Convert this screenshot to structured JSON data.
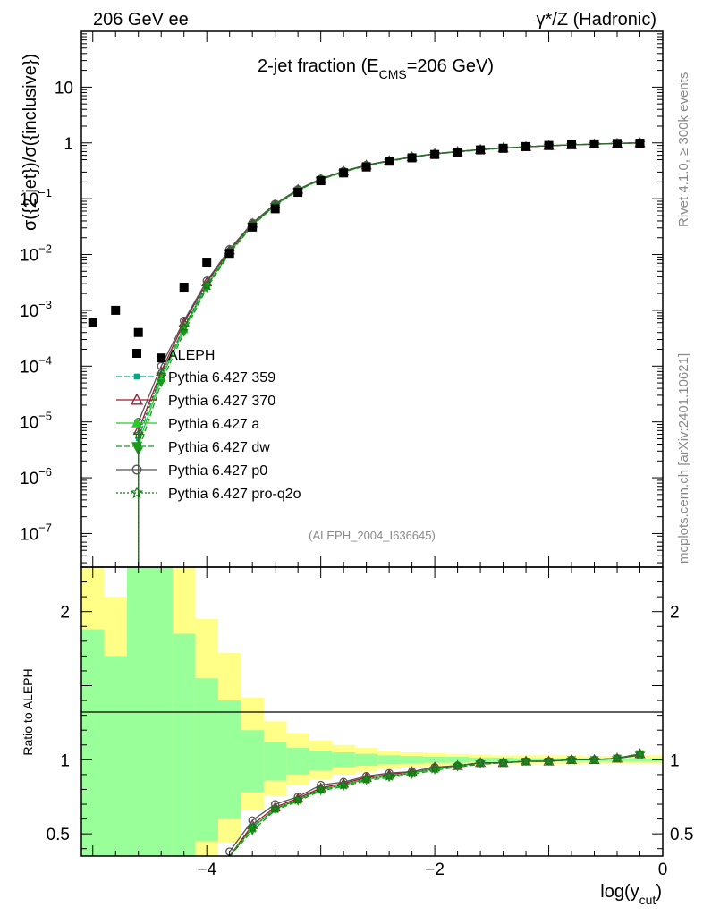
{
  "header": {
    "left": "206 GeV ee",
    "right": "γ*/Z (Hadronic)",
    "side_right_top": "Rivet 4.1.0, ≥ 300k events",
    "side_right_bottom": "mcplots.cern.ch [arXiv:2401.10621]",
    "analysis_id": "(ALEPH_2004_I636645)"
  },
  "chart_data": [
    {
      "type": "scatter",
      "title": "2-jet fraction (E_CMS=206 GeV)",
      "title_main": "2-jet fraction (E",
      "title_sub": "CMS",
      "title_end": "=206 GeV)",
      "xlabel": "log(y_cut)",
      "xlabel_main": "log(y",
      "xlabel_sub": "cut",
      "xlabel_end": ")",
      "ylabel": "σ({2 jet})/σ({inclusive})",
      "yscale": "log",
      "xlim": [
        -5.1,
        0.0
      ],
      "ylim": [
        2.5e-08,
        100
      ],
      "y_ticks": [
        {
          "value": 10,
          "label": "10"
        },
        {
          "value": 1,
          "label": "1"
        },
        {
          "value": 0.1,
          "label": "10",
          "exp": "−1"
        },
        {
          "value": 0.01,
          "label": "10",
          "exp": "−2"
        },
        {
          "value": 0.001,
          "label": "10",
          "exp": "−3"
        },
        {
          "value": 0.0001,
          "label": "10",
          "exp": "−4"
        },
        {
          "value": 1e-05,
          "label": "10",
          "exp": "−5"
        },
        {
          "value": 1e-06,
          "label": "10",
          "exp": "−6"
        },
        {
          "value": 1e-07,
          "label": "10",
          "exp": "−7"
        }
      ],
      "data": {
        "name": "ALEPH",
        "color": "#000000",
        "x": [
          -5.0,
          -4.8,
          -4.6,
          -4.4,
          -4.2,
          -4.0,
          -3.8,
          -3.6,
          -3.4,
          -3.2,
          -3.0,
          -2.8,
          -2.6,
          -2.4,
          -2.2,
          -2.0,
          -1.8,
          -1.6,
          -1.4,
          -1.2,
          -1.0,
          -0.8,
          -0.6,
          -0.4,
          -0.2
        ],
        "y": [
          0.0006,
          0.001,
          0.0004,
          0.00014,
          0.0026,
          0.0073,
          0.0105,
          0.031,
          0.066,
          0.13,
          0.21,
          0.29,
          0.37,
          0.47,
          0.54,
          0.62,
          0.68,
          0.75,
          0.8,
          0.86,
          0.9,
          0.93,
          0.96,
          0.98,
          0.99
        ]
      },
      "series": [
        {
          "name": "Pythia 6.427 359",
          "color": "#00aa88",
          "dash": "6,3",
          "marker": "square",
          "x": [
            -4.6,
            -4.4,
            -4.2,
            -4.0,
            -3.8,
            -3.6,
            -3.4,
            -3.2,
            -3.0,
            -2.8,
            -2.6,
            -2.4,
            -2.2,
            -2.0,
            -1.8,
            -1.6,
            -1.4,
            -1.2,
            -1.0,
            -0.8,
            -0.6,
            -0.4,
            -0.2
          ],
          "y": [
            5e-06,
            7e-05,
            0.0005,
            0.003,
            0.012,
            0.036,
            0.079,
            0.145,
            0.225,
            0.31,
            0.4,
            0.48,
            0.56,
            0.64,
            0.7,
            0.76,
            0.81,
            0.85,
            0.89,
            0.92,
            0.95,
            0.98,
            1.0
          ]
        },
        {
          "name": "Pythia 6.427 370",
          "color": "#a01830",
          "dash": "",
          "marker": "triangle-open",
          "x": [
            -4.6,
            -4.4,
            -4.2,
            -4.0,
            -3.8,
            -3.6,
            -3.4,
            -3.2,
            -3.0,
            -2.8,
            -2.6,
            -2.4,
            -2.2,
            -2.0,
            -1.8,
            -1.6,
            -1.4,
            -1.2,
            -1.0,
            -0.8,
            -0.6,
            -0.4,
            -0.2
          ],
          "y": [
            7e-06,
            8e-05,
            0.0006,
            0.0032,
            0.012,
            0.036,
            0.08,
            0.146,
            0.225,
            0.31,
            0.4,
            0.48,
            0.56,
            0.64,
            0.7,
            0.76,
            0.81,
            0.85,
            0.89,
            0.92,
            0.95,
            0.98,
            1.0
          ]
        },
        {
          "name": "Pythia 6.427 a",
          "color": "#22cc22",
          "dash": "",
          "marker": "triangle",
          "x": [
            -4.6,
            -4.4,
            -4.2,
            -4.0,
            -3.8,
            -3.6,
            -3.4,
            -3.2,
            -3.0,
            -2.8,
            -2.6,
            -2.4,
            -2.2,
            -2.0,
            -1.8,
            -1.6,
            -1.4,
            -1.2,
            -1.0,
            -0.8,
            -0.6,
            -0.4,
            -0.2
          ],
          "y": [
            4e-06,
            6e-05,
            0.00045,
            0.0027,
            0.011,
            0.034,
            0.077,
            0.142,
            0.222,
            0.305,
            0.395,
            0.475,
            0.555,
            0.635,
            0.695,
            0.755,
            0.805,
            0.85,
            0.89,
            0.92,
            0.95,
            0.98,
            1.01
          ]
        },
        {
          "name": "Pythia 6.427 dw",
          "color": "#1a9a1a",
          "dash": "6,3",
          "marker": "triangle-down",
          "x": [
            -4.6,
            -4.4,
            -4.2,
            -4.0,
            -3.8,
            -3.6,
            -3.4,
            -3.2,
            -3.0,
            -2.8,
            -2.6,
            -2.4,
            -2.2,
            -2.0,
            -1.8,
            -1.6,
            -1.4,
            -1.2,
            -1.0,
            -0.8,
            -0.6,
            -0.4,
            -0.2
          ],
          "y": [
            3e-06,
            5e-05,
            0.0004,
            0.0025,
            0.0105,
            0.033,
            0.076,
            0.14,
            0.22,
            0.3,
            0.39,
            0.47,
            0.55,
            0.63,
            0.69,
            0.75,
            0.8,
            0.85,
            0.89,
            0.92,
            0.95,
            0.98,
            1.01
          ]
        },
        {
          "name": "Pythia 6.427 p0",
          "color": "#555555",
          "dash": "",
          "marker": "circle-open",
          "x": [
            -4.6,
            -4.4,
            -4.2,
            -4.0,
            -3.8,
            -3.6,
            -3.4,
            -3.2,
            -3.0,
            -2.8,
            -2.6,
            -2.4,
            -2.2,
            -2.0,
            -1.8,
            -1.6,
            -1.4,
            -1.2,
            -1.0,
            -0.8,
            -0.6,
            -0.4,
            -0.2
          ],
          "y": [
            1e-05,
            0.0001,
            0.00065,
            0.0034,
            0.0125,
            0.037,
            0.081,
            0.147,
            0.227,
            0.312,
            0.402,
            0.482,
            0.562,
            0.642,
            0.702,
            0.762,
            0.812,
            0.852,
            0.892,
            0.922,
            0.952,
            0.982,
            1.0
          ]
        },
        {
          "name": "Pythia 6.427 pro-q2o",
          "color": "#117711",
          "dash": "2,2",
          "marker": "star",
          "x": [
            -4.6,
            -4.4,
            -4.2,
            -4.0,
            -3.8,
            -3.6,
            -3.4,
            -3.2,
            -3.0,
            -2.8,
            -2.6,
            -2.4,
            -2.2,
            -2.0,
            -1.8,
            -1.6,
            -1.4,
            -1.2,
            -1.0,
            -0.8,
            -0.6,
            -0.4,
            -0.2
          ],
          "y": [
            6e-06,
            7e-05,
            0.0005,
            0.0028,
            0.011,
            0.034,
            0.077,
            0.142,
            0.222,
            0.305,
            0.395,
            0.475,
            0.555,
            0.635,
            0.695,
            0.755,
            0.805,
            0.85,
            0.89,
            0.92,
            0.95,
            0.98,
            1.0
          ]
        }
      ]
    },
    {
      "type": "scatter",
      "title": "",
      "xlabel": "log(y_cut)",
      "ylabel": "Ratio to ALEPH",
      "xlim": [
        -5.1,
        0.0
      ],
      "ylim": [
        0.35,
        2.3
      ],
      "x_ticks": [
        {
          "value": -4,
          "label": "−4"
        },
        {
          "value": -2,
          "label": "−2"
        },
        {
          "value": 0,
          "label": "0"
        }
      ],
      "y_ticks": [
        {
          "value": 0.5,
          "label": "0.5"
        },
        {
          "value": 1,
          "label": "1"
        },
        {
          "value": 2,
          "label": "2"
        }
      ],
      "uncertainty_bands": {
        "bin_edges": [
          -5.1,
          -4.9,
          -4.7,
          -4.5,
          -4.3,
          -4.1,
          -3.9,
          -3.7,
          -3.5,
          -3.3,
          -3.1,
          -2.9,
          -2.7,
          -2.5,
          -2.3,
          -2.1,
          -1.9,
          -1.7,
          -1.5,
          -1.3,
          -1.1,
          -0.9,
          -0.7,
          -0.5,
          -0.3,
          -0.1,
          0.0
        ],
        "inner": [
          [
            0.35,
            1.88
          ],
          [
            0.35,
            1.7
          ],
          [
            0.35,
            2.3
          ],
          [
            0.35,
            2.3
          ],
          [
            0.35,
            1.85
          ],
          [
            0.45,
            1.55
          ],
          [
            0.6,
            1.4
          ],
          [
            0.78,
            1.2
          ],
          [
            0.86,
            1.12
          ],
          [
            0.9,
            1.08
          ],
          [
            0.93,
            1.06
          ],
          [
            0.95,
            1.05
          ],
          [
            0.96,
            1.04
          ],
          [
            0.97,
            1.03
          ],
          [
            0.975,
            1.025
          ],
          [
            0.98,
            1.02
          ],
          [
            0.98,
            1.02
          ],
          [
            0.985,
            1.015
          ],
          [
            0.985,
            1.015
          ],
          [
            0.99,
            1.01
          ],
          [
            0.99,
            1.01
          ],
          [
            0.99,
            1.01
          ],
          [
            0.99,
            1.01
          ],
          [
            0.99,
            1.01
          ],
          [
            0.99,
            1.01
          ],
          [
            0.99,
            1.01
          ]
        ],
        "outer": [
          [
            0.35,
            2.3
          ],
          [
            0.35,
            2.1
          ],
          [
            0.35,
            2.3
          ],
          [
            0.35,
            2.3
          ],
          [
            0.35,
            2.3
          ],
          [
            0.35,
            1.95
          ],
          [
            0.44,
            1.72
          ],
          [
            0.66,
            1.42
          ],
          [
            0.76,
            1.26
          ],
          [
            0.83,
            1.18
          ],
          [
            0.87,
            1.13
          ],
          [
            0.9,
            1.1
          ],
          [
            0.92,
            1.08
          ],
          [
            0.94,
            1.06
          ],
          [
            0.95,
            1.05
          ],
          [
            0.955,
            1.045
          ],
          [
            0.96,
            1.04
          ],
          [
            0.965,
            1.035
          ],
          [
            0.97,
            1.03
          ],
          [
            0.97,
            1.03
          ],
          [
            0.97,
            1.03
          ],
          [
            0.97,
            1.03
          ],
          [
            0.975,
            1.025
          ],
          [
            0.975,
            1.025
          ],
          [
            0.975,
            1.03
          ],
          [
            0.975,
            1.03
          ]
        ],
        "inner_color": "#99ff99",
        "outer_color": "#ffff88"
      },
      "ratios": {
        "x": [
          -3.8,
          -3.6,
          -3.4,
          -3.2,
          -3.0,
          -2.8,
          -2.6,
          -2.4,
          -2.2,
          -2.0,
          -1.8,
          -1.6,
          -1.4,
          -1.2,
          -1.0,
          -0.8,
          -0.6,
          -0.4,
          -0.2
        ],
        "Pythia 6.427 359": [
          0.3,
          0.55,
          0.66,
          0.73,
          0.8,
          0.83,
          0.87,
          0.89,
          0.91,
          0.94,
          0.96,
          0.97,
          0.98,
          0.99,
          0.99,
          1.0,
          1.0,
          1.01,
          1.04
        ],
        "Pythia 6.427 370": [
          0.33,
          0.56,
          0.68,
          0.74,
          0.81,
          0.84,
          0.88,
          0.9,
          0.92,
          0.95,
          0.96,
          0.98,
          0.98,
          0.99,
          0.99,
          1.0,
          1.0,
          1.01,
          1.04
        ],
        "Pythia 6.427 a": [
          0.28,
          0.54,
          0.67,
          0.73,
          0.8,
          0.83,
          0.87,
          0.89,
          0.91,
          0.94,
          0.96,
          0.98,
          0.98,
          0.99,
          0.99,
          1.0,
          1.0,
          1.01,
          1.04
        ],
        "Pythia 6.427 dw": [
          0.27,
          0.52,
          0.66,
          0.72,
          0.79,
          0.82,
          0.86,
          0.88,
          0.9,
          0.93,
          0.95,
          0.97,
          0.98,
          0.99,
          0.99,
          1.0,
          1.0,
          1.01,
          1.04
        ],
        "Pythia 6.427 p0": [
          0.38,
          0.59,
          0.7,
          0.75,
          0.83,
          0.85,
          0.89,
          0.91,
          0.92,
          0.95,
          0.96,
          0.98,
          0.98,
          0.99,
          0.99,
          1.0,
          1.0,
          1.01,
          1.03
        ],
        "Pythia 6.427 pro-q2o": [
          0.28,
          0.54,
          0.67,
          0.73,
          0.8,
          0.83,
          0.87,
          0.89,
          0.91,
          0.94,
          0.96,
          0.98,
          0.98,
          0.99,
          0.99,
          1.0,
          1.0,
          1.01,
          1.04
        ]
      }
    }
  ]
}
